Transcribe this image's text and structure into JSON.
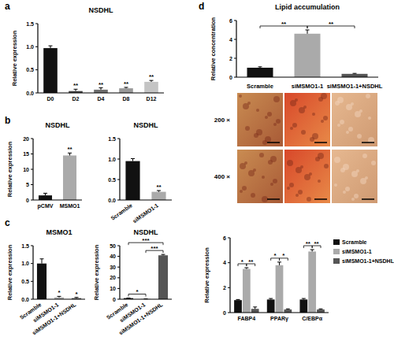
{
  "panel_labels": [
    "a",
    "b",
    "c",
    "d"
  ],
  "magnifications": [
    "200 ×",
    "400 ×"
  ],
  "chart_data": [
    {
      "type": "bar",
      "title": "NSDHL",
      "y_label": "Relative expression",
      "categories": [
        "D0",
        "D2",
        "D4",
        "D8",
        "D12"
      ],
      "values": [
        0.97,
        0.04,
        0.07,
        0.1,
        0.24
      ],
      "errors": [
        0.05,
        0.04,
        0.04,
        0.02,
        0.03
      ],
      "colors": [
        "#111111",
        "#444444",
        "#6e6e6e",
        "#999999",
        "#c4c4c4"
      ],
      "sig": [
        null,
        "**",
        "**",
        "**",
        "**"
      ],
      "ylim": [
        0,
        1.5
      ],
      "yticks": [
        {
          "value": 0,
          "label": "0.0"
        },
        {
          "value": 0.5,
          "label": "0.5"
        },
        {
          "value": 1,
          "label": "1.0"
        },
        {
          "value": 1.5,
          "label": "1.5"
        }
      ]
    },
    {
      "type": "bar",
      "title": "NSDHL",
      "y_label": "Relative expression",
      "categories": [
        "pCMV",
        "MSMO1"
      ],
      "values": [
        1.5,
        14.5
      ],
      "errors": [
        0.7,
        0.8
      ],
      "colors": [
        "#111111",
        "#aaaaaa"
      ],
      "sig": [
        null,
        "**"
      ],
      "ylim": [
        0,
        20
      ],
      "yticks": [
        0,
        5,
        10,
        15,
        20
      ]
    },
    {
      "type": "bar",
      "title": "NSDHL",
      "categories": [
        "Scramble",
        "siMSMO1-1"
      ],
      "values": [
        0.95,
        0.2
      ],
      "errors": [
        0.06,
        0.03
      ],
      "colors": [
        "#111111",
        "#aaaaaa"
      ],
      "sig": [
        null,
        "**"
      ],
      "ylim": [
        0,
        1.5
      ],
      "yticks": [
        {
          "value": 0,
          "label": "0.0"
        },
        {
          "value": 0.5,
          "label": "0.5"
        },
        {
          "value": 1,
          "label": "1.0"
        },
        {
          "value": 1.5,
          "label": "1.5"
        }
      ]
    },
    {
      "type": "bar",
      "title": "MSMO1",
      "y_label": "Relative expression",
      "categories": [
        "Scramble",
        "siMSMO1-1",
        "siMSMO1-1+NSDHL"
      ],
      "values": [
        1.0,
        0.05,
        0.03
      ],
      "errors": [
        0.13,
        0.03,
        0.02
      ],
      "colors": [
        "#111111",
        "#aaaaaa",
        "#555555"
      ],
      "sig": [
        null,
        "*",
        "*"
      ],
      "ylim": [
        0,
        1.5
      ],
      "yticks": [
        {
          "value": 0,
          "label": "0.0"
        },
        {
          "value": 0.5,
          "label": "0.5"
        },
        {
          "value": 1,
          "label": "1.0"
        },
        {
          "value": 1.5,
          "label": "1.5"
        }
      ]
    },
    {
      "type": "bar",
      "title": "NSDHL",
      "y_label": "Relative expression",
      "categories": [
        "Scramble",
        "siMSMO1-1",
        "siMSMO1-1+NSDHL"
      ],
      "values": [
        1.0,
        0.3,
        41
      ],
      "errors": [
        0.1,
        0.05,
        0.8
      ],
      "colors": [
        "#111111",
        "#aaaaaa",
        "#555555"
      ],
      "brackets": [
        {
          "from": 0,
          "to": 1,
          "label": "*"
        },
        {
          "from": 1,
          "to": 2,
          "label": "***"
        },
        {
          "from": 0,
          "to": 2,
          "label": "***"
        }
      ],
      "ylim": [
        0,
        50
      ],
      "yticks": [
        0,
        10,
        20,
        30,
        40,
        50
      ]
    },
    {
      "type": "bar",
      "title": "Lipid accumulation",
      "y_label": "Relative concentration",
      "categories": [
        "Scramble",
        "siMSMO1-1",
        "siMSMO1-1+NSDHL"
      ],
      "values": [
        1.0,
        4.6,
        0.35
      ],
      "errors": [
        0.1,
        0.4,
        0.05
      ],
      "colors": [
        "#111111",
        "#aaaaaa",
        "#555555"
      ],
      "brackets": [
        {
          "from": 0,
          "to": 1,
          "label": "**"
        },
        {
          "from": 1,
          "to": 2,
          "label": "**"
        }
      ],
      "tick_labels": "y",
      "ylim": [
        0,
        6
      ],
      "yticks": [
        0,
        2,
        4,
        6
      ]
    },
    {
      "type": "bar",
      "y_label": "Relative expression",
      "categories": [
        "FABP4",
        "PPARγ",
        "C/EBPα"
      ],
      "series": [
        {
          "name": "Scramble",
          "color": "#111111",
          "values": [
            1.0,
            1.05,
            1.05
          ],
          "errors": [
            0.05,
            0.08,
            0.08
          ]
        },
        {
          "name": "siMSMO1-1",
          "color": "#aaaaaa",
          "values": [
            3.5,
            3.8,
            4.9
          ],
          "errors": [
            0.1,
            0.25,
            0.15
          ]
        },
        {
          "name": "siMSMO1-1+NSDHL",
          "color": "#555555",
          "values": [
            0.3,
            0.25,
            0.25
          ],
          "errors": [
            0.15,
            0.05,
            0.05
          ]
        }
      ],
      "brackets": [
        {
          "category": 0,
          "from": 0,
          "to": 1,
          "label": "*"
        },
        {
          "category": 0,
          "from": 1,
          "to": 2,
          "label": "**"
        },
        {
          "category": 1,
          "from": 0,
          "to": 1,
          "label": "*"
        },
        {
          "category": 1,
          "from": 1,
          "to": 2,
          "label": "*"
        },
        {
          "category": 2,
          "from": 0,
          "to": 1,
          "label": "**"
        },
        {
          "category": 2,
          "from": 1,
          "to": 2,
          "label": "**"
        }
      ],
      "legend": "right",
      "ylim": [
        0,
        6
      ],
      "yticks": [
        0,
        2,
        4,
        6
      ]
    }
  ]
}
